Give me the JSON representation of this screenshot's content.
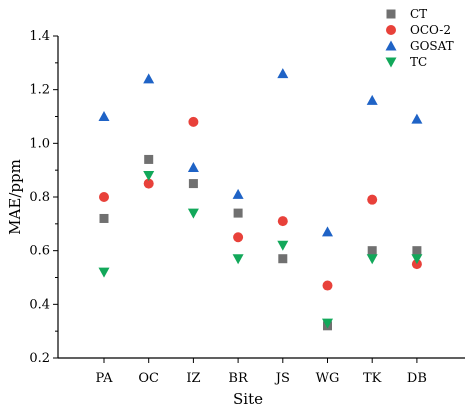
{
  "chart_data": {
    "type": "scatter",
    "xlabel": "Site",
    "ylabel": "MAE/ppm",
    "categories": [
      "PA",
      "OC",
      "IZ",
      "BR",
      "JS",
      "WG",
      "TK",
      "DB"
    ],
    "ylim": [
      0.2,
      1.4
    ],
    "yticks": [
      "0.2",
      "0.4",
      "0.6",
      "0.8",
      "1.0",
      "1.2",
      "1.4"
    ],
    "grid": false,
    "legend_position": "top-right",
    "series": [
      {
        "name": "CT",
        "marker": "square",
        "color": "#707070",
        "values": [
          0.72,
          0.94,
          0.85,
          0.74,
          0.57,
          0.32,
          0.6,
          0.6
        ]
      },
      {
        "name": "OCO-2",
        "marker": "circle",
        "color": "#e8413a",
        "values": [
          0.8,
          0.85,
          1.08,
          0.65,
          0.71,
          0.47,
          0.79,
          0.55
        ]
      },
      {
        "name": "GOSAT",
        "marker": "triangle-up",
        "color": "#1f63c6",
        "values": [
          1.1,
          1.24,
          0.91,
          0.81,
          1.26,
          0.67,
          1.16,
          1.09
        ]
      },
      {
        "name": "TC",
        "marker": "triangle-down",
        "color": "#12a85a",
        "values": [
          0.52,
          0.88,
          0.74,
          0.57,
          0.62,
          0.33,
          0.57,
          0.57
        ]
      }
    ]
  }
}
